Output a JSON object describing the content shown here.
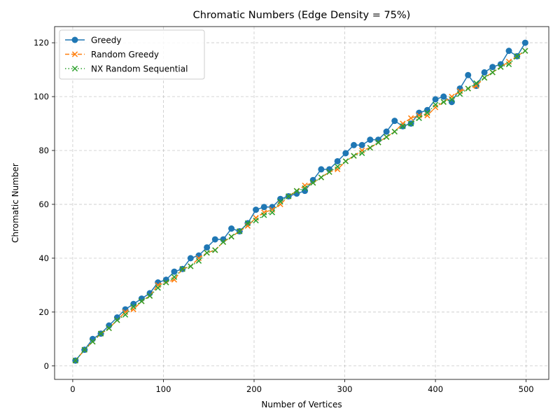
{
  "chart_data": {
    "type": "line",
    "title": "Chromatic Numbers (Edge Density = 75%)",
    "xlabel": "Number of Vertices",
    "ylabel": "Chromatic Number",
    "xlim": [
      -20,
      525
    ],
    "ylim": [
      -5,
      126
    ],
    "xticks": [
      0,
      100,
      200,
      300,
      400,
      500
    ],
    "yticks": [
      0,
      20,
      40,
      60,
      80,
      100,
      120
    ],
    "grid": true,
    "legend_position": "top-left",
    "x": [
      3,
      13,
      22,
      31,
      40,
      49,
      58,
      67,
      76,
      85,
      94,
      103,
      112,
      121,
      130,
      139,
      148,
      157,
      166,
      175,
      184,
      193,
      202,
      211,
      220,
      229,
      238,
      247,
      256,
      265,
      274,
      283,
      292,
      301,
      310,
      319,
      328,
      337,
      346,
      355,
      364,
      373,
      382,
      391,
      400,
      409,
      418,
      427,
      436,
      445,
      454,
      463,
      472,
      481,
      490,
      499
    ],
    "series": [
      {
        "name": "Greedy",
        "color": "#1f77b4",
        "style": "solid",
        "marker": "circle",
        "values": [
          2,
          6,
          10,
          12,
          15,
          18,
          21,
          23,
          25,
          27,
          31,
          32,
          35,
          36,
          40,
          41,
          44,
          47,
          47,
          51,
          50,
          53,
          58,
          59,
          59,
          62,
          63,
          64,
          65,
          69,
          73,
          73,
          76,
          79,
          82,
          82,
          84,
          84,
          87,
          91,
          89,
          90,
          94,
          95,
          99,
          100,
          98,
          103,
          108,
          104,
          109,
          111,
          112,
          117,
          115,
          120
        ]
      },
      {
        "name": "Random Greedy",
        "color": "#ff7f0e",
        "style": "dashed",
        "marker": "x",
        "values": [
          2,
          6,
          9,
          12,
          14,
          17,
          20,
          21,
          24,
          26,
          30,
          31,
          32,
          36,
          37,
          40,
          42,
          43,
          46,
          48,
          50,
          52,
          55,
          57,
          58,
          60,
          63,
          65,
          67,
          68,
          70,
          72,
          73,
          76,
          78,
          80,
          81,
          83,
          85,
          87,
          90,
          92,
          93,
          93,
          96,
          98,
          100,
          102,
          103,
          104,
          107,
          109,
          111,
          113,
          115,
          117
        ]
      },
      {
        "name": "NX Random Sequential",
        "color": "#2ca02c",
        "style": "dotted",
        "marker": "x",
        "values": [
          2,
          6,
          9,
          12,
          14,
          17,
          19,
          22,
          24,
          26,
          29,
          31,
          33,
          36,
          37,
          39,
          42,
          43,
          46,
          48,
          50,
          53,
          54,
          56,
          57,
          61,
          63,
          65,
          66,
          68,
          70,
          72,
          74,
          76,
          78,
          79,
          81,
          83,
          85,
          87,
          89,
          90,
          92,
          94,
          97,
          98,
          99,
          101,
          103,
          105,
          107,
          109,
          111,
          112,
          115,
          117
        ]
      }
    ]
  }
}
